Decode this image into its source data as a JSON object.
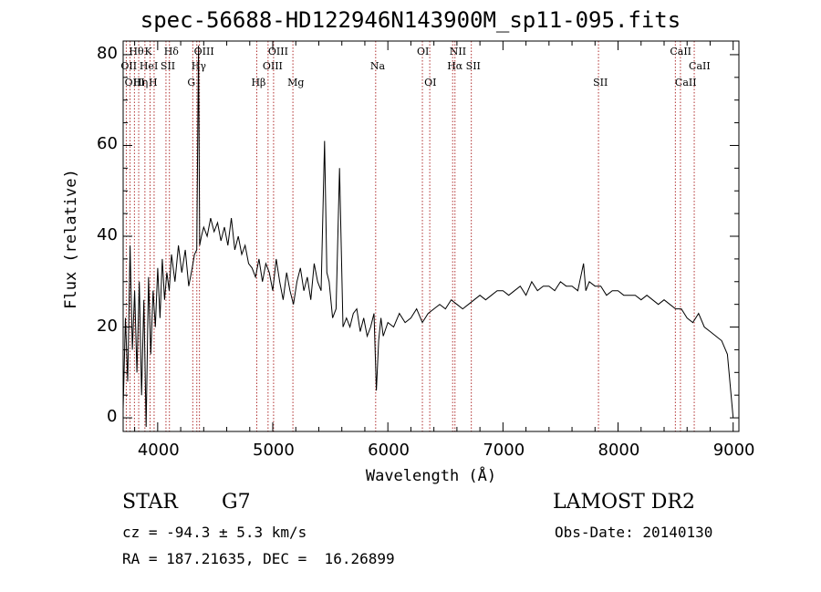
{
  "header": {
    "title": "spec-56688-HD122946N143900M_sp11-095.fits"
  },
  "footer": {
    "class_label": "STAR",
    "subclass_label": "G7",
    "survey": "LAMOST DR2",
    "redshift": "cz = -94.3 ± 5.3 km/s",
    "obs_date": "Obs-Date: 20140130",
    "coords": "RA = 187.21635, DEC =  16.26899"
  },
  "chart_data": {
    "type": "line",
    "title": "spec-56688-HD122946N143900M_sp11-095.fits",
    "xlabel": "Wavelength (Å)",
    "ylabel": "Flux (relative)",
    "xlim": [
      3700,
      9050
    ],
    "ylim": [
      -3,
      83
    ],
    "xticks": [
      4000,
      5000,
      6000,
      7000,
      8000,
      9000
    ],
    "yticks": [
      0,
      20,
      40,
      60,
      80
    ],
    "grid": false,
    "line_color": "#000000",
    "marker_line_color": "#b03030",
    "spectral_lines": [
      {
        "name": "Hθ",
        "wavelength": 3798,
        "row": 0
      },
      {
        "name": "OII",
        "wavelength": 3727,
        "row": 1
      },
      {
        "name": "OIII",
        "wavelength": 3760,
        "row": 2
      },
      {
        "name": "K",
        "wavelength": 3934,
        "row": 0
      },
      {
        "name": "Hη",
        "wavelength": 3835,
        "row": 2
      },
      {
        "name": "HeI",
        "wavelength": 3889,
        "row": 1
      },
      {
        "name": "SII",
        "wavelength": 4072,
        "row": 1
      },
      {
        "name": "H",
        "wavelength": 3969,
        "row": 2
      },
      {
        "name": "Hδ",
        "wavelength": 4102,
        "row": 0
      },
      {
        "name": "OIII",
        "wavelength": 4363,
        "row": 0
      },
      {
        "name": "Hγ",
        "wavelength": 4340,
        "row": 1
      },
      {
        "name": "G",
        "wavelength": 4305,
        "row": 2
      },
      {
        "name": "Hβ",
        "wavelength": 4861,
        "row": 2
      },
      {
        "name": "OIII",
        "wavelength": 5007,
        "row": 0
      },
      {
        "name": "OIII",
        "wavelength": 4959,
        "row": 1
      },
      {
        "name": "Mg",
        "wavelength": 5175,
        "row": 2
      },
      {
        "name": "Na",
        "wavelength": 5894,
        "row": 1
      },
      {
        "name": "OI",
        "wavelength": 6300,
        "row": 0
      },
      {
        "name": "OI",
        "wavelength": 6364,
        "row": 2
      },
      {
        "name": "NII",
        "wavelength": 6583,
        "row": 0
      },
      {
        "name": "Hα",
        "wavelength": 6563,
        "row": 1
      },
      {
        "name": "SII",
        "wavelength": 6725,
        "row": 1
      },
      {
        "name": "SII",
        "wavelength": 7830,
        "row": 2
      },
      {
        "name": "CaII",
        "wavelength": 8498,
        "row": 0
      },
      {
        "name": "CaII",
        "wavelength": 8662,
        "row": 1
      },
      {
        "name": "CaII",
        "wavelength": 8542,
        "row": 2
      }
    ],
    "series": [
      {
        "x": [
          3700,
          3720,
          3740,
          3760,
          3780,
          3800,
          3820,
          3840,
          3860,
          3880,
          3900,
          3920,
          3940,
          3960,
          3980,
          4000,
          4020,
          4040,
          4060,
          4080,
          4100,
          4120,
          4150,
          4180,
          4210,
          4240,
          4270,
          4300,
          4320,
          4340,
          4355,
          4365,
          4380,
          4400,
          4430,
          4460,
          4490,
          4520,
          4550,
          4580,
          4610,
          4640,
          4670,
          4700,
          4730,
          4760,
          4790,
          4820,
          4850,
          4880,
          4910,
          4940,
          4970,
          5000,
          5030,
          5060,
          5090,
          5120,
          5150,
          5180,
          5210,
          5240,
          5270,
          5300,
          5330,
          5360,
          5390,
          5420,
          5450,
          5470,
          5490,
          5520,
          5550,
          5580,
          5610,
          5640,
          5670,
          5700,
          5730,
          5760,
          5790,
          5820,
          5850,
          5880,
          5900,
          5920,
          5940,
          5960,
          6000,
          6050,
          6100,
          6150,
          6200,
          6250,
          6300,
          6350,
          6400,
          6450,
          6500,
          6550,
          6600,
          6650,
          6700,
          6750,
          6800,
          6850,
          6900,
          6950,
          7000,
          7050,
          7100,
          7150,
          7200,
          7250,
          7300,
          7350,
          7400,
          7450,
          7500,
          7550,
          7600,
          7650,
          7700,
          7720,
          7750,
          7800,
          7850,
          7900,
          7950,
          8000,
          8050,
          8100,
          8150,
          8200,
          8250,
          8300,
          8350,
          8400,
          8450,
          8500,
          8550,
          8600,
          8650,
          8700,
          8750,
          8800,
          8850,
          8900,
          8950,
          9000
        ],
        "y": [
          2,
          22,
          8,
          38,
          15,
          28,
          10,
          30,
          5,
          26,
          -2,
          31,
          14,
          28,
          20,
          33,
          22,
          35,
          26,
          32,
          28,
          36,
          30,
          38,
          32,
          37,
          29,
          33,
          36,
          37,
          82,
          38,
          40,
          42,
          40,
          44,
          41,
          43,
          39,
          42,
          38,
          44,
          37,
          40,
          36,
          38,
          34,
          33,
          31,
          35,
          30,
          34,
          32,
          28,
          35,
          30,
          26,
          32,
          28,
          25,
          30,
          33,
          28,
          31,
          26,
          34,
          30,
          28,
          61,
          32,
          30,
          22,
          24,
          55,
          20,
          22,
          20,
          23,
          24,
          19,
          22,
          18,
          20,
          23,
          6,
          17,
          22,
          18,
          21,
          20,
          23,
          21,
          22,
          24,
          21,
          23,
          24,
          25,
          24,
          26,
          25,
          24,
          25,
          26,
          27,
          26,
          27,
          28,
          28,
          27,
          28,
          29,
          27,
          30,
          28,
          29,
          29,
          28,
          30,
          29,
          29,
          28,
          34,
          28,
          30,
          29,
          29,
          27,
          28,
          28,
          27,
          27,
          27,
          26,
          27,
          26,
          25,
          26,
          25,
          24,
          24,
          22,
          21,
          23,
          20,
          19,
          18,
          17,
          14,
          0
        ]
      }
    ]
  }
}
